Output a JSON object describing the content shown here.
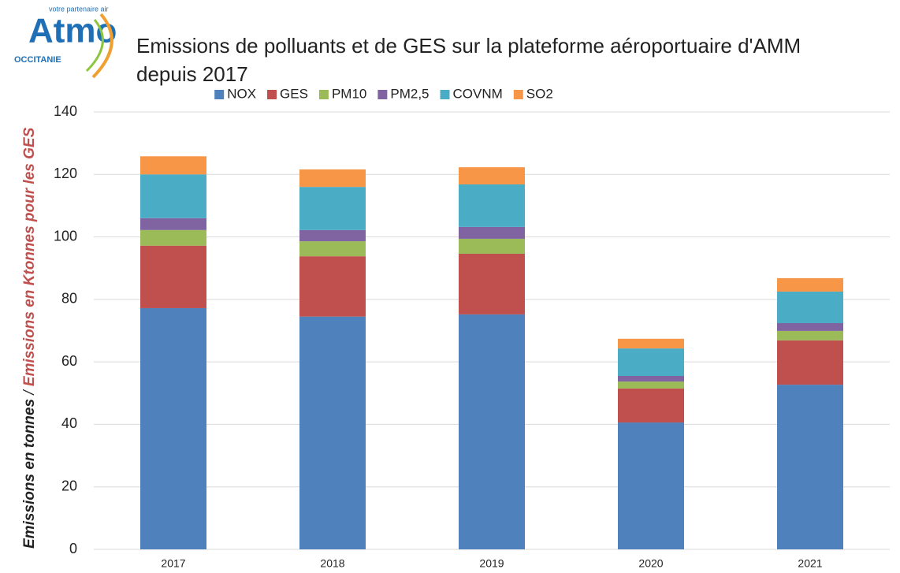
{
  "logo": {
    "name": "Atmo",
    "tagline": "votre partenaire air",
    "region": "OCCITANIE"
  },
  "chart_data": {
    "type": "stacked_bar",
    "title": "Emissions de polluants et de GES sur la plateforme aéroportuaire d'AMM depuis 2017",
    "y_label": [
      "Emissions en tonnes",
      "/",
      "Emissions en Ktonnes pour les GES"
    ],
    "categories": [
      "2017",
      "2018",
      "2019",
      "2020",
      "2021"
    ],
    "series": [
      {
        "name": "NOX",
        "color": "#4f81bd",
        "values": [
          77.2,
          74.5,
          75.2,
          40.6,
          52.7
        ]
      },
      {
        "name": "GES",
        "color": "#c0504d",
        "values": [
          20,
          19.3,
          19.4,
          10.9,
          14.2
        ]
      },
      {
        "name": "PM10",
        "color": "#9bbb59",
        "values": [
          5,
          4.8,
          4.8,
          2.2,
          3
        ]
      },
      {
        "name": "PM2,5",
        "color": "#8064a2",
        "values": [
          3.8,
          3.6,
          3.8,
          1.8,
          2.5
        ]
      },
      {
        "name": "COVNM",
        "color": "#4bacc6",
        "values": [
          14,
          13.8,
          13.6,
          8.8,
          10.1
        ]
      },
      {
        "name": "SO2",
        "color": "#f79646",
        "values": [
          5.8,
          5.6,
          5.5,
          3.1,
          4.3
        ]
      }
    ],
    "ylim": [
      0,
      140
    ],
    "yticks": [
      0,
      20,
      40,
      60,
      80,
      100,
      120,
      140
    ],
    "grid": true,
    "legend": "top"
  }
}
